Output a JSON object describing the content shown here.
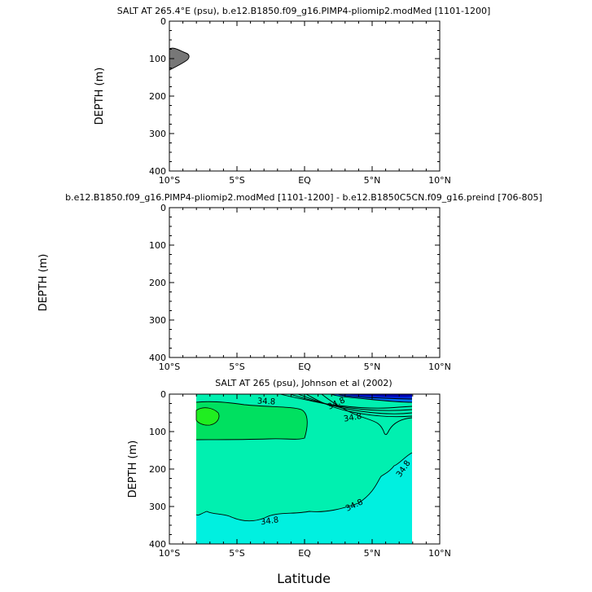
{
  "chart_data": [
    {
      "type": "contour",
      "title": "SALT AT 265.4°E (psu), b.e12.B1850.f09_g16.PIMP4-pliomip2.modMed [1101-1200]",
      "ylabel": "DEPTH (m)",
      "xlabel": "",
      "x_ticks": [
        "10°S",
        "5°S",
        "EQ",
        "5°N",
        "10°N"
      ],
      "x_range": [
        -10,
        10
      ],
      "y_ticks": [
        "0",
        "100",
        "200",
        "300",
        "400"
      ],
      "y_range": [
        0,
        400
      ],
      "shaded_region": {
        "lat_range": [
          -10,
          -8.5
        ],
        "depth_range": [
          70,
          130
        ],
        "color": "#777777"
      }
    },
    {
      "type": "contour",
      "title": "b.e12.B1850.f09_g16.PIMP4-pliomip2.modMed [1101-1200] - b.e12.B1850C5CN.f09_g16.preind [706-805]",
      "ylabel": "DEPTH (m)",
      "xlabel": "",
      "x_ticks": [
        "10°S",
        "5°S",
        "EQ",
        "5°N",
        "10°N"
      ],
      "x_range": [
        -10,
        10
      ],
      "y_ticks": [
        "0",
        "100",
        "200",
        "300",
        "400"
      ],
      "y_range": [
        0,
        400
      ]
    },
    {
      "type": "contour",
      "title": "SALT AT 265 (psu), Johnson et al (2002)",
      "ylabel": "DEPTH (m)",
      "xlabel": "Latitude",
      "x_ticks": [
        "10°S",
        "5°S",
        "EQ",
        "5°N",
        "10°N"
      ],
      "x_range": [
        -10,
        10
      ],
      "y_ticks": [
        "0",
        "100",
        "200",
        "300",
        "400"
      ],
      "y_range": [
        0,
        400
      ],
      "data_lat_range": [
        -8,
        8
      ],
      "contour_labels": [
        "34.8",
        "34.8",
        "34.8",
        "34.8",
        "34.8",
        "34.8"
      ],
      "colors": {
        "deep": "#00f0e0",
        "mid": "#00f0b0",
        "high": "#00e060",
        "max": "#20ee20",
        "fresh_1": "#0070ff",
        "fresh_2": "#0030e0",
        "fresh_3": "#0000b0"
      }
    }
  ]
}
